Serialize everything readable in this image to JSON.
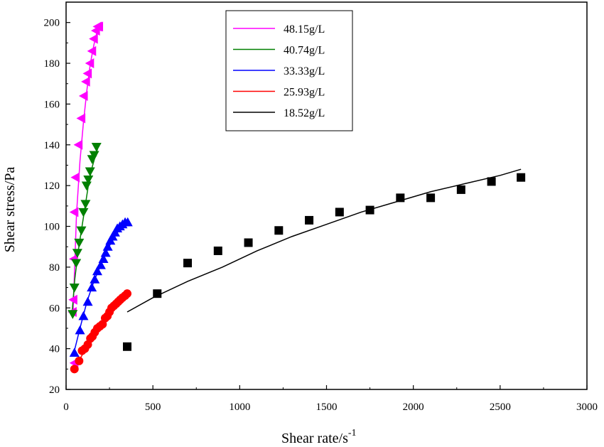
{
  "chart_data": {
    "type": "scatter",
    "xlabel": "Shear rate/s",
    "xlabel_superscript": "-1",
    "ylabel": "Shear stress/Pa",
    "xlim": [
      0,
      3000
    ],
    "ylim": [
      20,
      210
    ],
    "xticks": [
      0,
      500,
      1000,
      1500,
      2000,
      2500,
      3000
    ],
    "yticks": [
      20,
      40,
      60,
      80,
      100,
      120,
      140,
      160,
      180,
      200
    ],
    "grid": false,
    "legend_position": "top-center",
    "series": [
      {
        "name": "48.15g/L",
        "color": "#ff00ff",
        "marker": "triangle-left",
        "points": [
          [
            48,
            33
          ],
          [
            38,
            58
          ],
          [
            42,
            64
          ],
          [
            45,
            84
          ],
          [
            48,
            107
          ],
          [
            55,
            124
          ],
          [
            72,
            140
          ],
          [
            88,
            153
          ],
          [
            102,
            164
          ],
          [
            115,
            171
          ],
          [
            125,
            175
          ],
          [
            138,
            180
          ],
          [
            150,
            186
          ],
          [
            160,
            192
          ],
          [
            172,
            196
          ],
          [
            182,
            198
          ],
          [
            190,
            198
          ]
        ],
        "fit": [
          [
            40,
            57
          ],
          [
            60,
            106
          ],
          [
            80,
            132
          ],
          [
            100,
            151
          ],
          [
            120,
            167
          ],
          [
            140,
            180
          ],
          [
            160,
            189
          ],
          [
            180,
            196
          ],
          [
            195,
            199
          ]
        ]
      },
      {
        "name": "40.74g/L",
        "color": "#008000",
        "marker": "triangle-down",
        "points": [
          [
            38,
            57
          ],
          [
            48,
            70
          ],
          [
            58,
            82
          ],
          [
            65,
            87
          ],
          [
            75,
            92
          ],
          [
            88,
            98
          ],
          [
            100,
            107
          ],
          [
            112,
            111
          ],
          [
            118,
            120
          ],
          [
            128,
            123
          ],
          [
            138,
            127
          ],
          [
            150,
            133
          ],
          [
            162,
            135
          ],
          [
            175,
            139
          ]
        ],
        "fit": [
          [
            35,
            58
          ],
          [
            50,
            74
          ],
          [
            70,
            88
          ],
          [
            90,
            99
          ],
          [
            110,
            110
          ],
          [
            130,
            121
          ],
          [
            150,
            129
          ],
          [
            170,
            135
          ],
          [
            185,
            139
          ]
        ]
      },
      {
        "name": "33.33g/L",
        "color": "#0000ff",
        "marker": "triangle-up",
        "points": [
          [
            48,
            38
          ],
          [
            80,
            49
          ],
          [
            100,
            56
          ],
          [
            125,
            63
          ],
          [
            148,
            70
          ],
          [
            165,
            74
          ],
          [
            180,
            78
          ],
          [
            200,
            81
          ],
          [
            215,
            84
          ],
          [
            228,
            87
          ],
          [
            240,
            90
          ],
          [
            255,
            93
          ],
          [
            268,
            95
          ],
          [
            282,
            97
          ],
          [
            295,
            99
          ],
          [
            310,
            100
          ],
          [
            325,
            101
          ],
          [
            340,
            102
          ],
          [
            355,
            102
          ]
        ],
        "fit": [
          [
            45,
            38
          ],
          [
            80,
            50
          ],
          [
            120,
            63
          ],
          [
            160,
            73
          ],
          [
            200,
            81
          ],
          [
            240,
            89
          ],
          [
            280,
            95
          ],
          [
            320,
            100
          ],
          [
            355,
            102
          ]
        ]
      },
      {
        "name": "25.93g/L",
        "color": "#ff0000",
        "marker": "circle",
        "points": [
          [
            48,
            30
          ],
          [
            75,
            34
          ],
          [
            92,
            39
          ],
          [
            108,
            40
          ],
          [
            125,
            42
          ],
          [
            140,
            45
          ],
          [
            152,
            46
          ],
          [
            165,
            48
          ],
          [
            180,
            50
          ],
          [
            195,
            51
          ],
          [
            210,
            52
          ],
          [
            225,
            55
          ],
          [
            238,
            56
          ],
          [
            250,
            58
          ],
          [
            262,
            60
          ],
          [
            275,
            61
          ],
          [
            288,
            62
          ],
          [
            300,
            63
          ],
          [
            312,
            64
          ],
          [
            325,
            65
          ],
          [
            340,
            66
          ],
          [
            352,
            67
          ]
        ],
        "fit": [
          [
            45,
            30
          ],
          [
            80,
            35
          ],
          [
            120,
            41
          ],
          [
            160,
            47
          ],
          [
            200,
            52
          ],
          [
            240,
            57
          ],
          [
            280,
            61
          ],
          [
            320,
            65
          ],
          [
            352,
            67
          ]
        ]
      },
      {
        "name": "18.52g/L",
        "color": "#000000",
        "marker": "square",
        "points": [
          [
            352,
            41
          ],
          [
            525,
            67
          ],
          [
            700,
            82
          ],
          [
            875,
            88
          ],
          [
            1050,
            92
          ],
          [
            1225,
            98
          ],
          [
            1400,
            103
          ],
          [
            1575,
            107
          ],
          [
            1750,
            108
          ],
          [
            1925,
            114
          ],
          [
            2100,
            114
          ],
          [
            2275,
            118
          ],
          [
            2450,
            122
          ],
          [
            2620,
            124
          ]
        ],
        "fit": [
          [
            352,
            58
          ],
          [
            500,
            65
          ],
          [
            700,
            73
          ],
          [
            900,
            80
          ],
          [
            1100,
            88
          ],
          [
            1300,
            95
          ],
          [
            1500,
            101
          ],
          [
            1700,
            107
          ],
          [
            1900,
            112
          ],
          [
            2100,
            117
          ],
          [
            2300,
            121
          ],
          [
            2500,
            125
          ],
          [
            2620,
            128
          ]
        ]
      }
    ]
  }
}
